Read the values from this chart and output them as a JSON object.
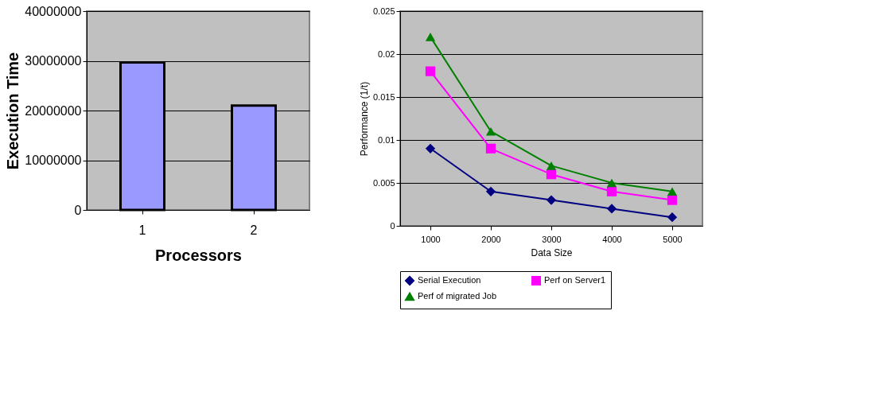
{
  "chart_data": [
    {
      "type": "bar",
      "categories": [
        "1",
        "2"
      ],
      "values": [
        29700000,
        21000000
      ],
      "color": "#9999ff",
      "xlabel": "Processors",
      "ylabel": "Execution Time",
      "ylim": [
        0,
        40000000
      ],
      "yticks": [
        0,
        10000000,
        20000000,
        30000000,
        40000000
      ],
      "grid": "y"
    },
    {
      "type": "line",
      "categories": [
        "1000",
        "2000",
        "3000",
        "4000",
        "5000"
      ],
      "xlabel": "Data Size",
      "ylabel": "Performance (1/t)",
      "ylim": [
        0,
        0.025
      ],
      "yticks": [
        0,
        0.005,
        0.01,
        0.015,
        0.02,
        0.025
      ],
      "grid": "y",
      "legend": "bottom",
      "series": [
        {
          "name": "Serial Execution",
          "color": "#000080",
          "marker": "diamond",
          "values": [
            0.009,
            0.004,
            0.003,
            0.002,
            0.001
          ]
        },
        {
          "name": "Perf on Server1",
          "color": "#ff00ff",
          "marker": "square",
          "values": [
            0.018,
            0.009,
            0.006,
            0.004,
            0.003
          ]
        },
        {
          "name": "Perf of migrated Job",
          "color": "#008000",
          "marker": "triangle",
          "values": [
            0.022,
            0.011,
            0.007,
            0.005,
            0.004
          ]
        }
      ]
    }
  ]
}
